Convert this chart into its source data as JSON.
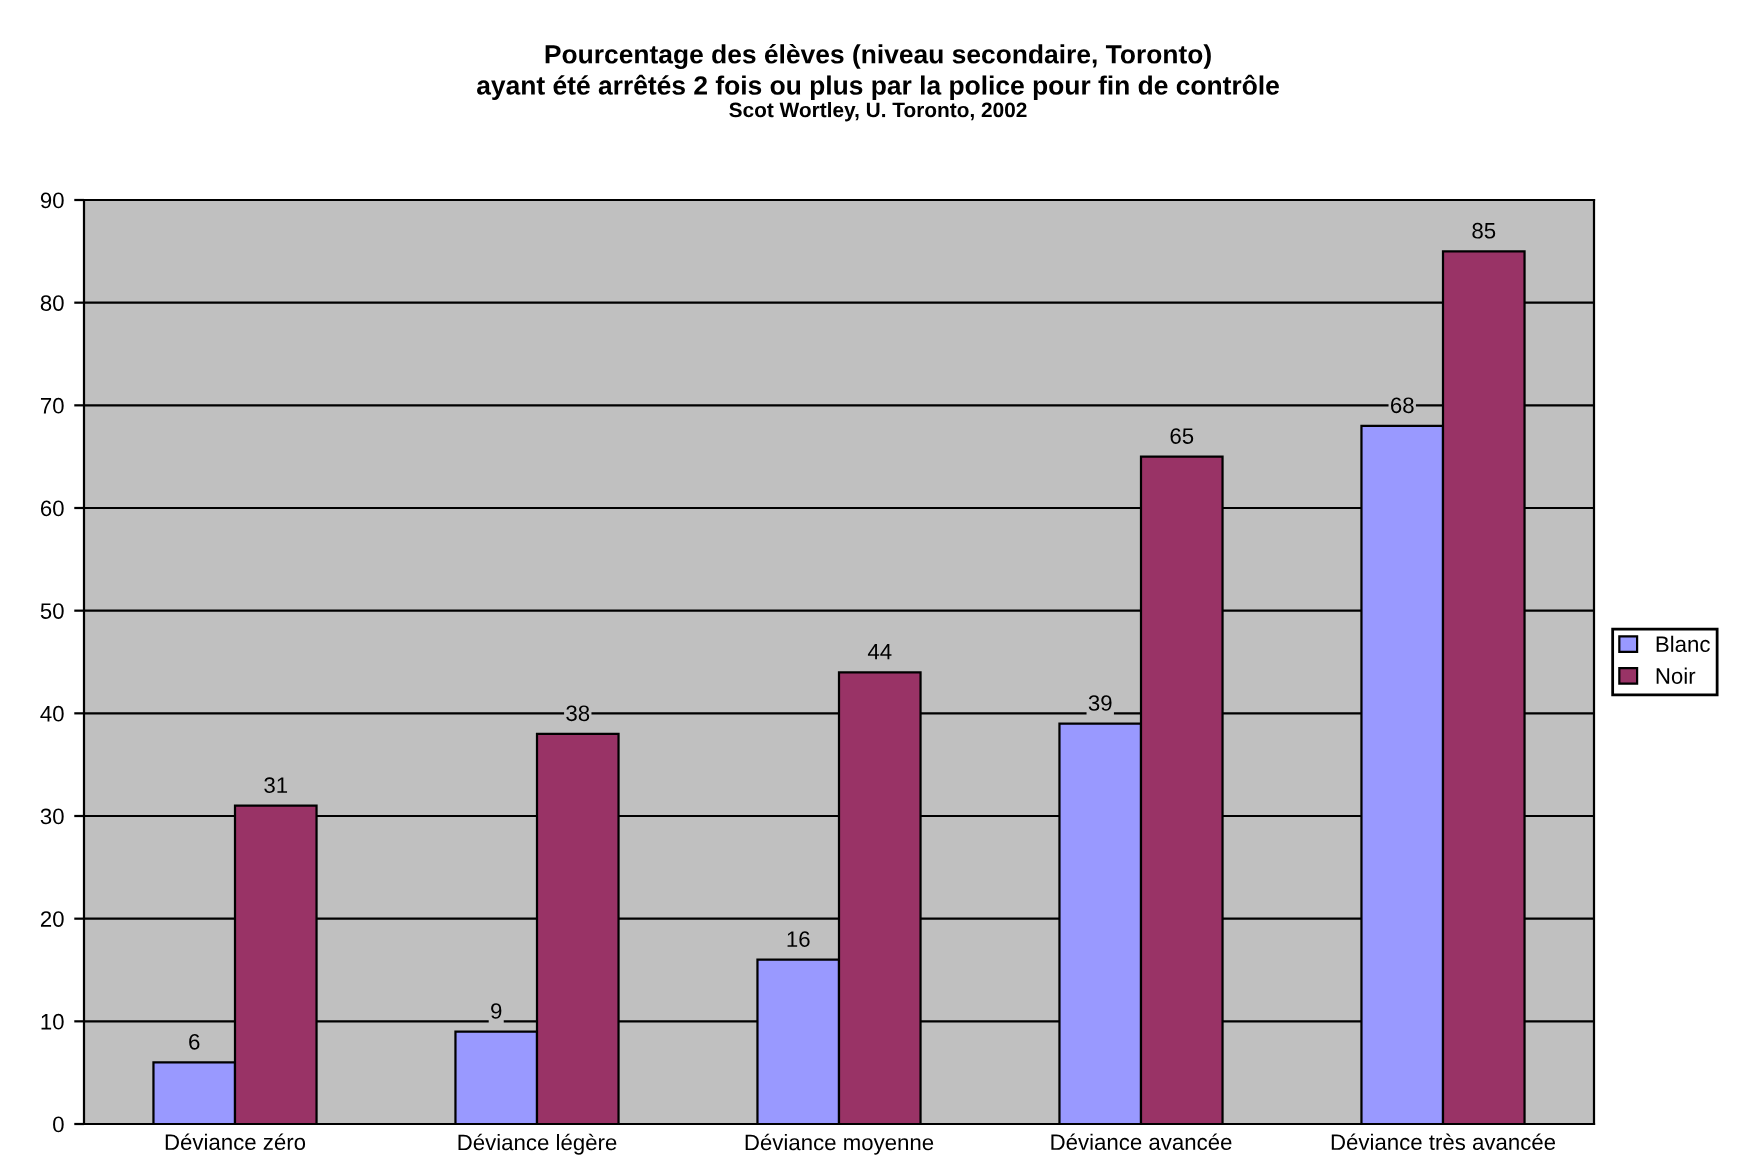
{
  "chart_data": {
    "type": "bar",
    "title": "Pourcentage des élèves (niveau secondaire, Toronto)\nayant été arrêtés 2 fois ou plus par la police pour fin de contrôle",
    "subtitle": "Scot Wortley, U. Toronto, 2002",
    "categories": [
      "Déviance zéro",
      "Déviance légère",
      "Déviance moyenne",
      "Déviance avancée",
      "Déviance très avancée"
    ],
    "series": [
      {
        "name": "Blanc",
        "color": "#9999ff",
        "values": [
          6,
          9,
          16,
          39,
          68
        ]
      },
      {
        "name": "Noir",
        "color": "#993366",
        "values": [
          31,
          38,
          44,
          65,
          85
        ]
      }
    ],
    "ylim": [
      0,
      90
    ],
    "yticks": [
      0,
      10,
      20,
      30,
      40,
      50,
      60,
      70,
      80,
      90
    ],
    "grid": "y",
    "legend": "right",
    "data_labels": true
  }
}
